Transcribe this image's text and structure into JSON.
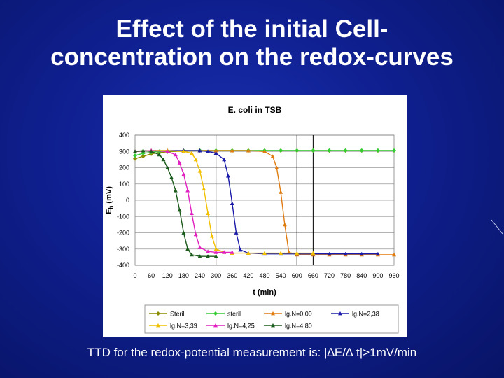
{
  "slide": {
    "title_line1": "Effect of the initial Cell-",
    "title_line2": "concentration on the redox-curves",
    "footer": "TTD for the redox-potential measurement is: |∆E/∆ t|>1mV/min"
  },
  "chart_data": {
    "type": "line",
    "title": "E. coli  in TSB",
    "xlabel": "t (min)",
    "ylabel": "Eh (mV)",
    "ylabel_main": "E",
    "ylabel_sub": "h",
    "ylabel_unit": " (mV)",
    "xlim": [
      0,
      960
    ],
    "ylim": [
      -400,
      400
    ],
    "xticks": [
      "0",
      "60",
      "120",
      "180",
      "240",
      "300",
      "360",
      "420",
      "480",
      "540",
      "600",
      "660",
      "720",
      "780",
      "840",
      "900",
      "960"
    ],
    "yticks": [
      "400",
      "300",
      "200",
      "100",
      "0",
      "-100",
      "-200",
      "-300",
      "-400"
    ],
    "grid": "horizontal",
    "vlines": [
      300,
      600,
      660
    ],
    "legend_position": "bottom",
    "series": [
      {
        "name": "Steril",
        "color": "#8c8c00",
        "marker": "diamond",
        "x": [
          0,
          30,
          60,
          90,
          120,
          180,
          240,
          300,
          360,
          420,
          480,
          540,
          600,
          660,
          720,
          780,
          840,
          900,
          960
        ],
        "y": [
          255,
          270,
          285,
          292,
          298,
          302,
          305,
          305,
          305,
          305,
          305,
          305,
          305,
          305,
          305,
          305,
          305,
          305,
          305
        ]
      },
      {
        "name": "steril",
        "color": "#33cc33",
        "marker": "diamond",
        "x": [
          0,
          30,
          60,
          90,
          120,
          180,
          240,
          300,
          360,
          420,
          480,
          540,
          600,
          660,
          720,
          780,
          840,
          900,
          960
        ],
        "y": [
          275,
          288,
          295,
          300,
          303,
          305,
          306,
          306,
          306,
          306,
          306,
          306,
          306,
          306,
          306,
          306,
          306,
          306,
          306
        ]
      },
      {
        "name": "lg.N=0,09",
        "color": "#e07b10",
        "marker": "triangle",
        "x": [
          0,
          60,
          120,
          180,
          240,
          300,
          360,
          420,
          480,
          510,
          525,
          540,
          555,
          570,
          600,
          660,
          720,
          780,
          840,
          900,
          960
        ],
        "y": [
          300,
          305,
          305,
          305,
          305,
          305,
          305,
          305,
          300,
          270,
          200,
          50,
          -150,
          -320,
          -335,
          -335,
          -335,
          -335,
          -335,
          -335,
          -335
        ]
      },
      {
        "name": "lg.N=2,38",
        "color": "#1a1aa8",
        "marker": "triangle",
        "x": [
          0,
          60,
          120,
          180,
          240,
          270,
          300,
          330,
          345,
          360,
          375,
          390,
          420,
          480,
          540,
          600,
          660,
          720,
          780,
          840,
          900
        ],
        "y": [
          300,
          305,
          305,
          305,
          305,
          300,
          290,
          250,
          150,
          -20,
          -200,
          -305,
          -325,
          -330,
          -330,
          -330,
          -330,
          -330,
          -330,
          -330,
          -330
        ]
      },
      {
        "name": "lg.N=3,39",
        "color": "#f2c000",
        "marker": "triangle",
        "x": [
          0,
          60,
          120,
          180,
          210,
          225,
          240,
          255,
          270,
          285,
          300,
          330,
          360,
          420,
          480,
          540,
          600,
          660
        ],
        "y": [
          300,
          305,
          305,
          300,
          290,
          250,
          180,
          70,
          -80,
          -220,
          -300,
          -320,
          -325,
          -325,
          -325,
          -325,
          -325,
          -325
        ]
      },
      {
        "name": "lg.N=4,25",
        "color": "#e020c0",
        "marker": "triangle",
        "x": [
          0,
          60,
          120,
          150,
          165,
          180,
          195,
          210,
          225,
          240,
          270,
          300,
          330,
          360
        ],
        "y": [
          300,
          305,
          300,
          280,
          230,
          160,
          60,
          -80,
          -210,
          -290,
          -315,
          -320,
          -320,
          -320
        ]
      },
      {
        "name": "lg.N=4,80",
        "color": "#1a5a1a",
        "marker": "triangle",
        "x": [
          0,
          30,
          60,
          90,
          105,
          120,
          135,
          150,
          165,
          180,
          195,
          210,
          240,
          270,
          300
        ],
        "y": [
          300,
          305,
          300,
          280,
          250,
          200,
          140,
          60,
          -60,
          -200,
          -300,
          -335,
          -345,
          -345,
          -345
        ]
      }
    ]
  }
}
